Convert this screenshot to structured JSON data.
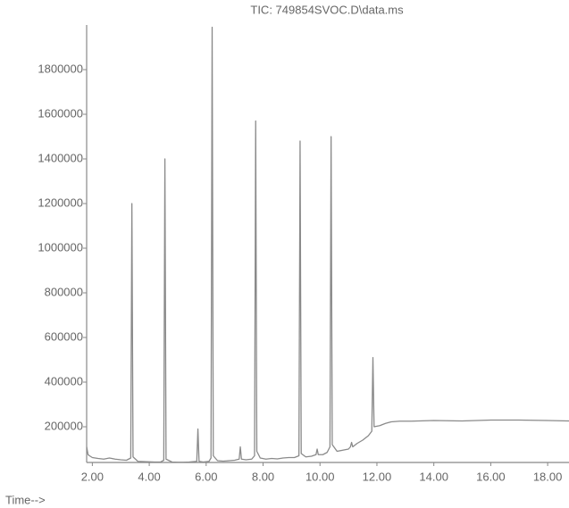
{
  "chart_data": {
    "type": "line",
    "title": "TIC: 749854SVOC.D\\data.ms",
    "x_label": "Time-->",
    "x": [
      1.8,
      1.85,
      1.9,
      2.0,
      2.2,
      2.4,
      2.6,
      2.8,
      3.0,
      3.2,
      3.35,
      3.39,
      3.43,
      3.6,
      3.8,
      4.0,
      4.2,
      4.4,
      4.51,
      4.55,
      4.59,
      4.8,
      5.0,
      5.2,
      5.4,
      5.67,
      5.71,
      5.75,
      5.9,
      6.1,
      6.17,
      6.21,
      6.25,
      6.4,
      6.6,
      6.8,
      7.0,
      7.16,
      7.2,
      7.24,
      7.4,
      7.6,
      7.7,
      7.74,
      7.78,
      7.9,
      8.1,
      8.3,
      8.5,
      8.7,
      8.9,
      9.1,
      9.26,
      9.3,
      9.34,
      9.5,
      9.7,
      9.86,
      9.9,
      9.94,
      10.1,
      10.25,
      10.35,
      10.39,
      10.43,
      10.6,
      10.8,
      11.0,
      11.07,
      11.11,
      11.15,
      11.3,
      11.5,
      11.7,
      11.82,
      11.86,
      11.9,
      12.1,
      12.3,
      12.5,
      12.8,
      13.2,
      14,
      15,
      16,
      17,
      18,
      18.75
    ],
    "series": [
      {
        "color": "#8a8a8a",
        "values": [
          110000,
          75000,
          70000,
          62000,
          58000,
          55000,
          60000,
          55000,
          52000,
          50000,
          60000,
          1200000,
          65000,
          45000,
          44000,
          43000,
          42000,
          42000,
          50000,
          1400000,
          55000,
          42000,
          41000,
          41000,
          42000,
          45000,
          190000,
          45000,
          42000,
          45000,
          60000,
          1990000,
          70000,
          48000,
          46000,
          48000,
          50000,
          55000,
          110000,
          55000,
          52000,
          55000,
          70000,
          1570000,
          90000,
          60000,
          55000,
          58000,
          56000,
          60000,
          62000,
          62000,
          70000,
          1480000,
          80000,
          65000,
          68000,
          75000,
          100000,
          75000,
          75000,
          85000,
          110000,
          1500000,
          120000,
          90000,
          95000,
          100000,
          110000,
          130000,
          110000,
          125000,
          140000,
          160000,
          180000,
          510000,
          200000,
          205000,
          215000,
          222000,
          225000,
          225000,
          228000,
          226000,
          230000,
          230000,
          228000,
          226000
        ]
      }
    ],
    "xlim": [
      1.8,
      18.75
    ],
    "ylim": [
      40000,
      2000000
    ],
    "xticks": [
      {
        "value": 2,
        "label": "2.00"
      },
      {
        "value": 4,
        "label": "4.00"
      },
      {
        "value": 6,
        "label": "6.00"
      },
      {
        "value": 8,
        "label": "8.00"
      },
      {
        "value": 10,
        "label": "10.00"
      },
      {
        "value": 12,
        "label": "12.00"
      },
      {
        "value": 14,
        "label": "14.00"
      },
      {
        "value": 16,
        "label": "16.00"
      },
      {
        "value": 18,
        "label": "18.00"
      }
    ],
    "yticks": [
      200000,
      400000,
      600000,
      800000,
      1000000,
      1200000,
      1400000,
      1600000,
      1800000
    ]
  }
}
